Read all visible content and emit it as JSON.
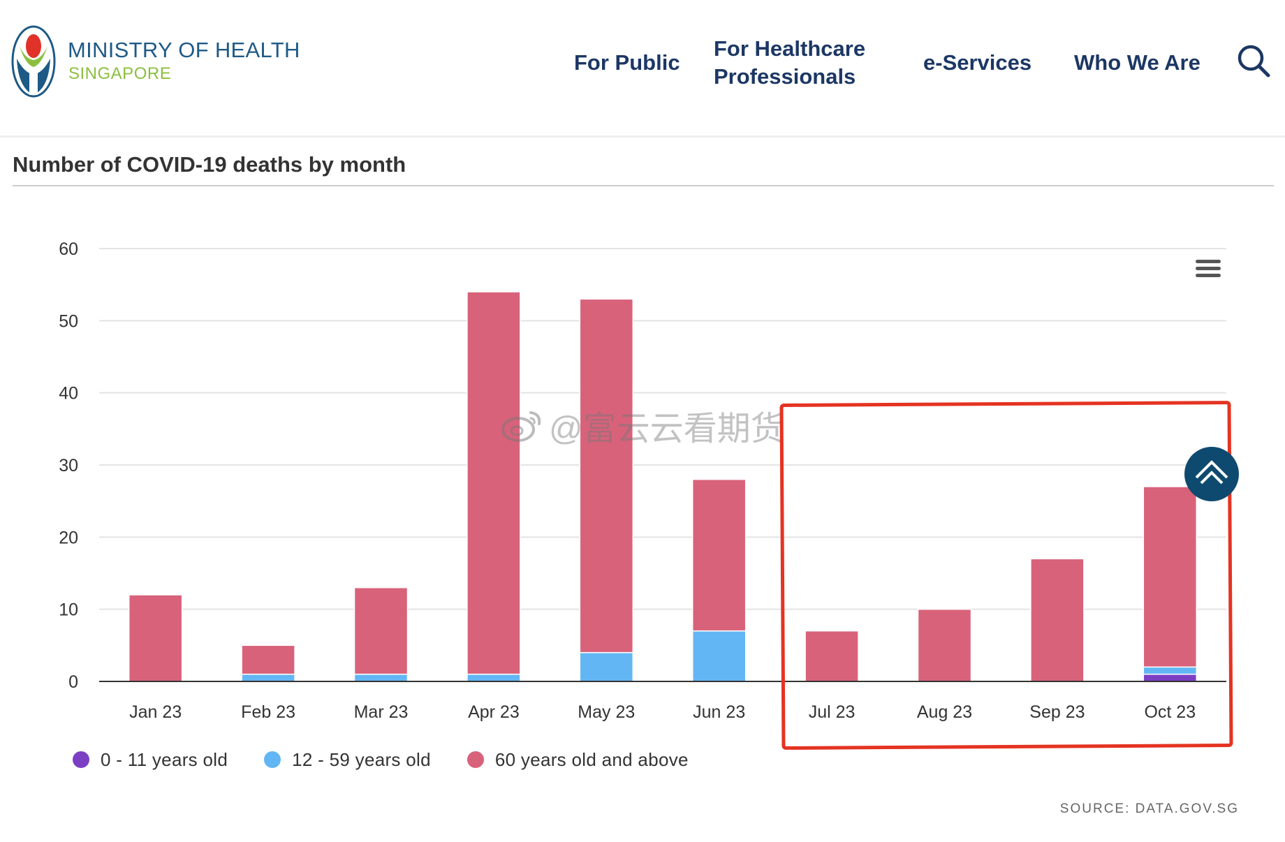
{
  "header": {
    "brand_name": "MINISTRY OF HEALTH",
    "brand_sub": "SINGAPORE",
    "nav": [
      {
        "label": "For Public"
      },
      {
        "label_line1": "For Healthcare",
        "label_line2": "Professionals"
      },
      {
        "label": "e-Services"
      },
      {
        "label": "Who We Are"
      }
    ],
    "search_icon": "search-icon"
  },
  "section_title": "Number of COVID-19 deaths by month",
  "colors": {
    "series_0_11": "#7b3fc4",
    "series_12_59": "#63b6f4",
    "series_60_plus": "#d8627a",
    "annotation": "#e53322",
    "scroll_top_bg": "#0e4a6f",
    "nav": "#1c3764"
  },
  "chart_data": {
    "type": "bar",
    "stacked": true,
    "categories": [
      "Jan 23",
      "Feb 23",
      "Mar 23",
      "Apr 23",
      "May 23",
      "Jun 23",
      "Jul 23",
      "Aug 23",
      "Sep 23",
      "Oct 23"
    ],
    "series": [
      {
        "name": "0 - 11 years old",
        "values": [
          0,
          0,
          0,
          0,
          0,
          0,
          0,
          0,
          0,
          1
        ]
      },
      {
        "name": "12 - 59 years old",
        "values": [
          0,
          1,
          1,
          1,
          4,
          7,
          0,
          0,
          0,
          1
        ]
      },
      {
        "name": "60 years old and above",
        "values": [
          12,
          4,
          12,
          53,
          49,
          21,
          7,
          10,
          17,
          25
        ]
      }
    ],
    "yticks": [
      "0",
      "10",
      "20",
      "30",
      "40",
      "50",
      "60"
    ],
    "ylim": [
      0,
      60
    ],
    "grid": true,
    "legend": "bottom-left"
  },
  "watermark": "@富云云看期货",
  "source": "SOURCE: DATA.GOV.SG",
  "icons": {
    "menu": "hamburger-menu-icon",
    "scroll_top": "chevron-up-icon",
    "watermark": "weibo-icon"
  }
}
